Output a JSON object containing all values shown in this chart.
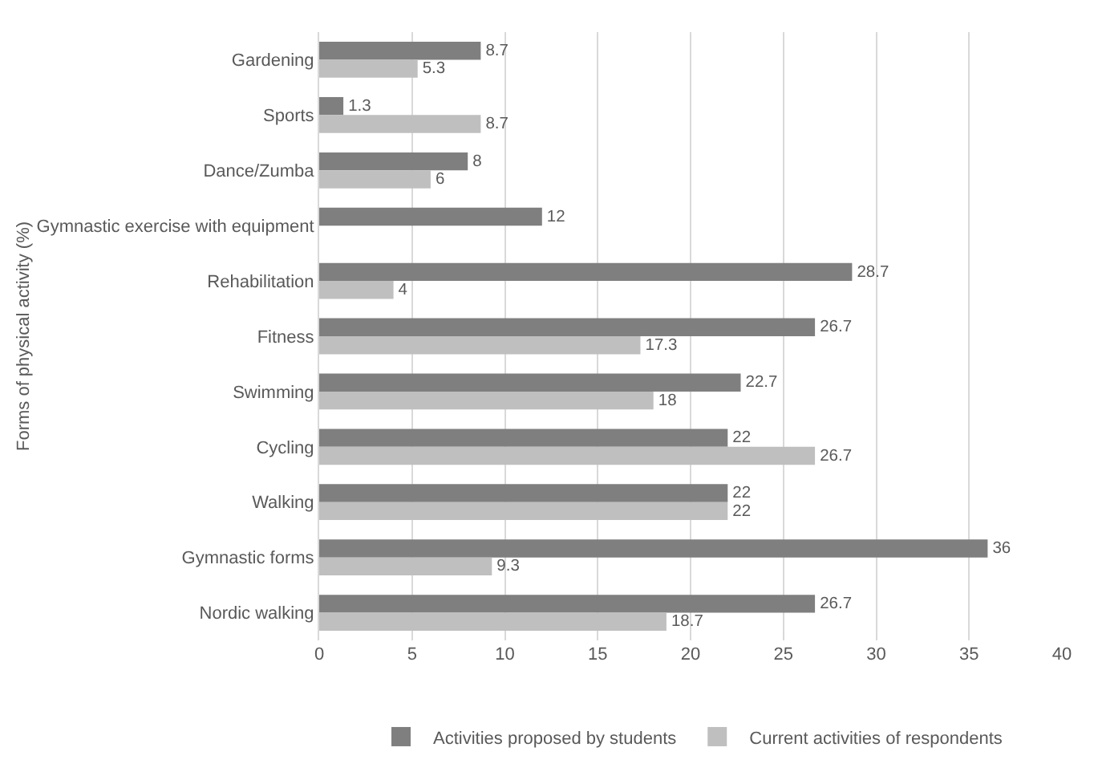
{
  "chart_data": {
    "type": "bar",
    "orientation": "horizontal",
    "ylabel": "Forms of physical activity (%)",
    "categories": [
      "Gardening",
      "Sports",
      "Dance/Zumba",
      "Gymnastic exercise with equipment",
      "Rehabilitation",
      "Fitness",
      "Swimming",
      "Cycling",
      "Walking",
      "Gymnastic forms",
      "Nordic walking"
    ],
    "series": [
      {
        "name": "Activities proposed by students",
        "color": "#7f7f7f",
        "values": [
          8.7,
          1.3,
          8,
          12,
          28.7,
          26.7,
          22.7,
          22,
          22,
          36,
          26.7
        ]
      },
      {
        "name": "Current activities of respondents",
        "color": "#bfbfbf",
        "values": [
          5.3,
          8.7,
          6,
          null,
          4,
          17.3,
          18,
          26.7,
          22,
          9.3,
          18.7
        ]
      }
    ],
    "xlim": [
      0,
      40
    ],
    "xticks": [
      0,
      5,
      10,
      15,
      20,
      25,
      30,
      35,
      40
    ],
    "grid": "x",
    "data_labels": true,
    "legend": "bottom"
  }
}
